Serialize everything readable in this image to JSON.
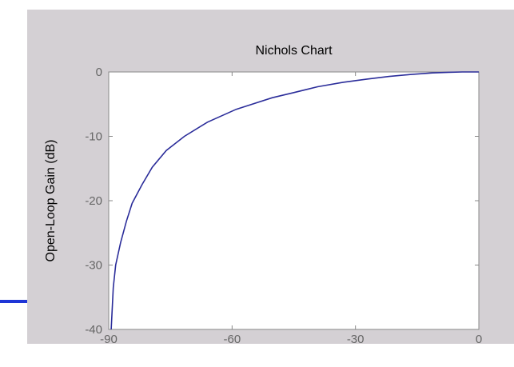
{
  "colors": {
    "panel_background": "#d4d0d4",
    "plot_background": "#ffffff",
    "axes_color": "#888888",
    "tick_label_color": "#666666",
    "series_color": "#2b2d9a",
    "accent_line": "#1e35d6"
  },
  "chart_data": {
    "type": "line",
    "title": "Nichols Chart",
    "xlabel": "",
    "ylabel": "Open-Loop Gain (dB)",
    "xlim": [
      -90,
      0
    ],
    "ylim": [
      -40,
      0
    ],
    "xticks": [
      -90,
      -60,
      -30,
      0
    ],
    "yticks": [
      0,
      -10,
      -20,
      -30,
      -40
    ],
    "xtick_labels": [
      "-90",
      "-60",
      "-30",
      "0"
    ],
    "ytick_labels": [
      "0",
      "-10",
      "-20",
      "-30",
      "-40"
    ],
    "grid": false,
    "series": [
      {
        "x": [
          -89.4,
          -88.9,
          -88.3,
          -87.1,
          -85.7,
          -84.3,
          -81.9,
          -79.4,
          -76.0,
          -71.6,
          -66.0,
          -59.0,
          -50.2,
          -45.0,
          -39.2,
          -33.0,
          -27.2,
          -21.8,
          -16.7,
          -11.3,
          -7.3,
          -4.0,
          0
        ],
        "y": [
          -40,
          -33.5,
          -30,
          -26.5,
          -23.2,
          -20.4,
          -17.5,
          -14.8,
          -12.2,
          -10.0,
          -7.8,
          -5.8,
          -4.0,
          -3.2,
          -2.3,
          -1.6,
          -1.1,
          -0.7,
          -0.4,
          -0.15,
          -0.05,
          0,
          0
        ]
      }
    ]
  }
}
